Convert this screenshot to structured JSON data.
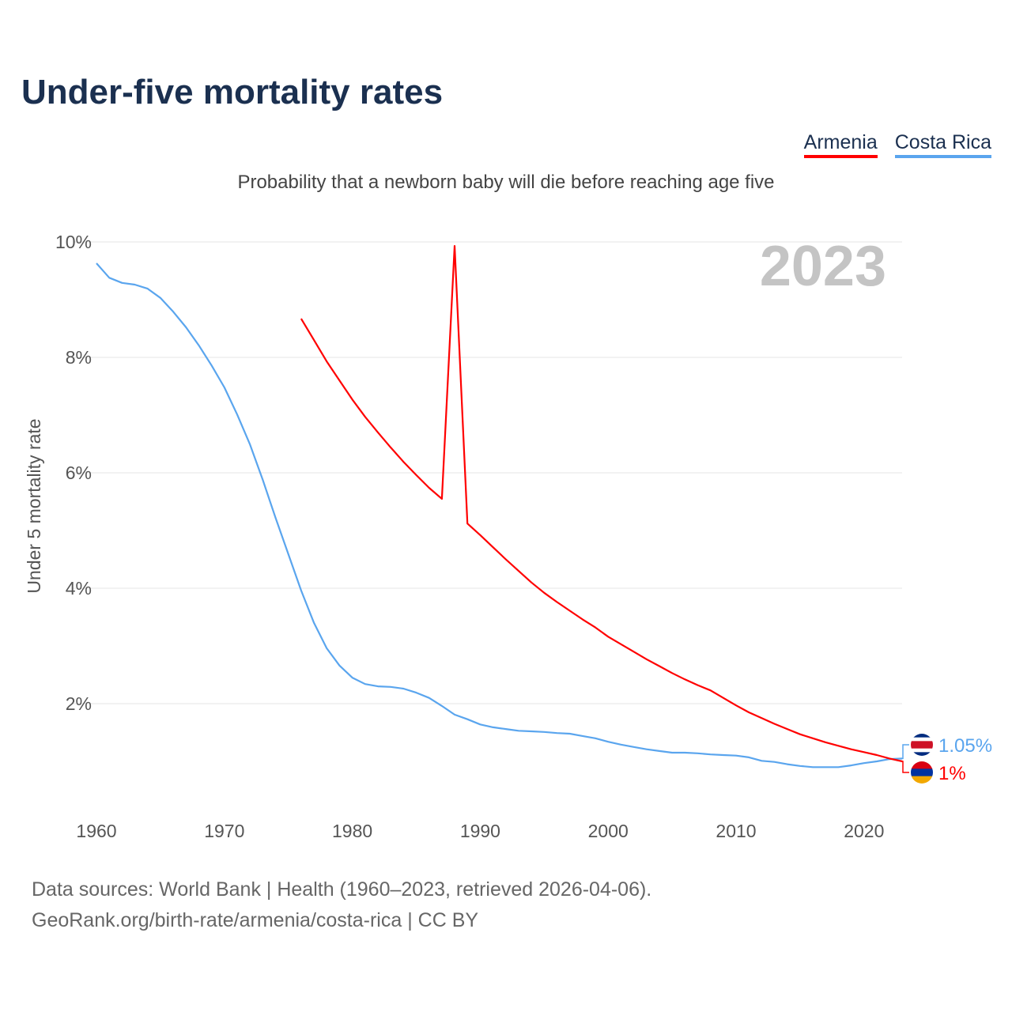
{
  "title": "Under-five mortality rates",
  "subtitle": "Probability that a newborn baby will die before reaching age five",
  "source_line1": "Data sources: World Bank | Health (1960–2023, retrieved 2026-04-06).",
  "source_line2": "GeoRank.org/birth-rate/armenia/costa-rica | CC BY",
  "chart_data": {
    "type": "line",
    "title": "Under-five mortality rates",
    "ylabel": "Under 5 mortality rate",
    "xlabel": "",
    "year_label": "2023",
    "xlim": [
      1960,
      2023
    ],
    "ylim": [
      0,
      10
    ],
    "xticks": [
      1960,
      1970,
      1980,
      1990,
      2000,
      2010,
      2020
    ],
    "yticks": [
      2,
      4,
      6,
      8,
      10
    ],
    "ytick_labels": [
      "2%",
      "4%",
      "6%",
      "8%",
      "10%"
    ],
    "grid": true,
    "legend_placement": "top-right",
    "series": [
      {
        "name": "Armenia",
        "color": "#ff0000",
        "end_label": "1%",
        "start_year": 1976,
        "values": [
          8.67,
          8.3,
          7.93,
          7.6,
          7.27,
          6.97,
          6.7,
          6.44,
          6.19,
          5.96,
          5.74,
          5.55,
          9.93,
          5.12,
          4.92,
          4.71,
          4.5,
          4.3,
          4.1,
          3.92,
          3.76,
          3.61,
          3.46,
          3.32,
          3.16,
          3.03,
          2.9,
          2.77,
          2.65,
          2.53,
          2.42,
          2.32,
          2.23,
          2.1,
          1.97,
          1.85,
          1.75,
          1.65,
          1.56,
          1.47,
          1.4,
          1.33,
          1.27,
          1.21,
          1.16,
          1.11,
          1.05,
          1.0
        ]
      },
      {
        "name": "Costa Rica",
        "color": "#5aa5ee",
        "end_label": "1.05%",
        "start_year": 1960,
        "values": [
          9.63,
          9.38,
          9.29,
          9.26,
          9.19,
          9.03,
          8.79,
          8.52,
          8.21,
          7.86,
          7.48,
          7.01,
          6.49,
          5.88,
          5.22,
          4.59,
          3.96,
          3.4,
          2.96,
          2.66,
          2.45,
          2.34,
          2.3,
          2.29,
          2.26,
          2.19,
          2.1,
          1.96,
          1.81,
          1.73,
          1.64,
          1.59,
          1.56,
          1.53,
          1.52,
          1.51,
          1.49,
          1.48,
          1.44,
          1.4,
          1.34,
          1.29,
          1.25,
          1.21,
          1.18,
          1.15,
          1.15,
          1.14,
          1.12,
          1.11,
          1.1,
          1.07,
          1.01,
          0.99,
          0.95,
          0.92,
          0.9,
          0.9,
          0.9,
          0.93,
          0.97,
          1.0,
          1.04,
          1.05
        ]
      }
    ]
  }
}
